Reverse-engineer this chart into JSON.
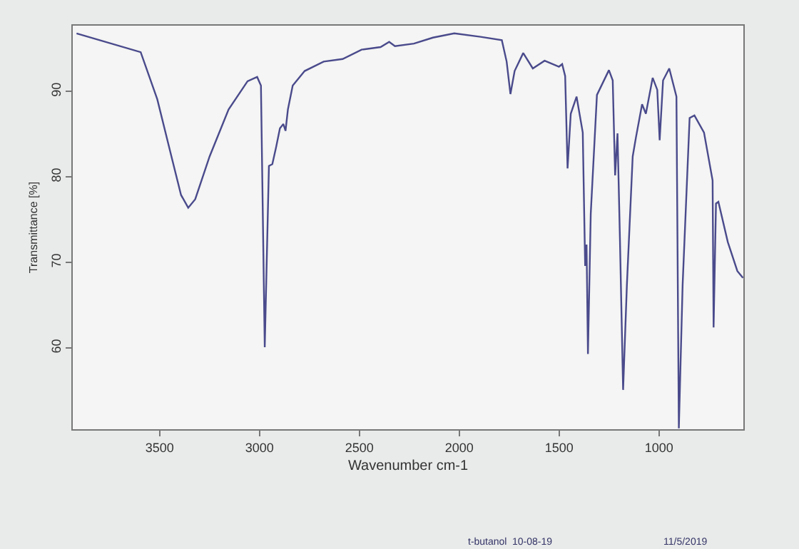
{
  "chart_data": {
    "type": "line",
    "xlabel": "Wavenumber cm-1",
    "ylabel": "Transmittance [%]",
    "xlim": [
      3935,
      578
    ],
    "ylim": [
      50.5,
      97.7
    ],
    "xticks": [
      3500,
      3000,
      2500,
      2000,
      1500,
      1000
    ],
    "yticks": [
      60,
      70,
      80,
      90
    ],
    "grid": false,
    "marker": "none",
    "line_style": "solid",
    "annotations": [
      "t-butanol",
      "10-08-19",
      "11/5/2019"
    ],
    "series": [
      {
        "color": "#4a4a8c",
        "x": [
          3916,
          3595,
          3512,
          3441,
          3393,
          3357,
          3322,
          3250,
          3155,
          3060,
          3012,
          2993,
          2974,
          2953,
          2936,
          2917,
          2898,
          2881,
          2870,
          2858,
          2834,
          2774,
          2679,
          2584,
          2489,
          2394,
          2351,
          2322,
          2227,
          2132,
          2025,
          1894,
          1787,
          1763,
          1744,
          1723,
          1680,
          1632,
          1573,
          1501,
          1485,
          1470,
          1458,
          1442,
          1413,
          1382,
          1370,
          1363,
          1356,
          1342,
          1311,
          1251,
          1232,
          1220,
          1208,
          1196,
          1180,
          1161,
          1132,
          1116,
          1085,
          1066,
          1032,
          1009,
          997,
          980,
          949,
          913,
          901,
          882,
          847,
          823,
          775,
          732,
          727,
          715,
          703,
          656,
          608,
          580
        ],
        "values": [
          96.8,
          94.6,
          89.1,
          82.4,
          77.9,
          76.4,
          77.4,
          82.4,
          87.9,
          91.2,
          91.7,
          90.7,
          60.1,
          81.3,
          81.5,
          83.5,
          85.7,
          86.2,
          85.4,
          87.9,
          90.7,
          92.4,
          93.5,
          93.8,
          94.9,
          95.2,
          95.8,
          95.3,
          95.6,
          96.3,
          96.8,
          96.4,
          96.0,
          93.5,
          89.7,
          92.4,
          94.5,
          92.7,
          93.6,
          92.9,
          93.2,
          91.8,
          81.0,
          87.4,
          89.4,
          85.2,
          69.6,
          72.1,
          59.3,
          75.7,
          89.6,
          92.5,
          91.3,
          80.2,
          85.1,
          72.9,
          55.1,
          67.4,
          82.4,
          84.6,
          88.5,
          87.4,
          91.6,
          90.2,
          84.3,
          91.3,
          92.7,
          89.4,
          50.6,
          67.4,
          86.9,
          87.2,
          85.2,
          79.6,
          62.4,
          76.9,
          77.1,
          72.4,
          69.0,
          68.2
        ]
      }
    ]
  }
}
